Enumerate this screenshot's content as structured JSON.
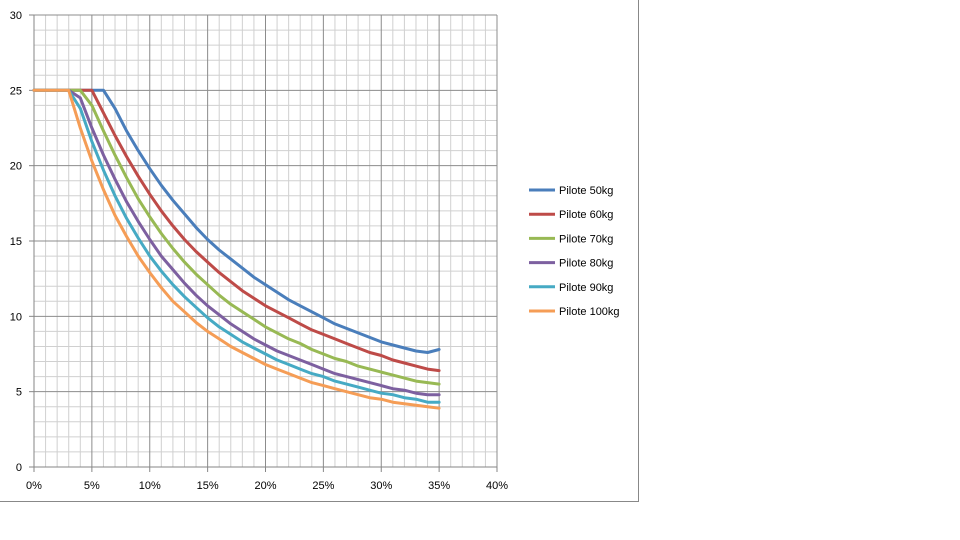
{
  "chart_data": {
    "type": "line",
    "title": "",
    "xlabel": "",
    "ylabel": "",
    "x": [
      0,
      1,
      2,
      3,
      4,
      5,
      6,
      7,
      8,
      9,
      10,
      11,
      12,
      13,
      14,
      15,
      16,
      17,
      18,
      19,
      20,
      21,
      22,
      23,
      24,
      25,
      26,
      27,
      28,
      29,
      30,
      31,
      32,
      33,
      34,
      35
    ],
    "xlim": [
      0,
      40
    ],
    "ylim": [
      0,
      30
    ],
    "x_tick_labels": [
      "0%",
      "5%",
      "10%",
      "15%",
      "20%",
      "25%",
      "30%",
      "35%",
      "40%"
    ],
    "y_tick_labels": [
      "0",
      "5",
      "10",
      "15",
      "20",
      "25",
      "30"
    ],
    "grid": "major and minor",
    "legend_position": "right",
    "series": [
      {
        "name": "Pilote 50kg",
        "color": "#4a7ebb",
        "values": [
          25,
          25,
          25,
          25,
          25,
          25,
          25,
          23.8,
          22.3,
          21.0,
          19.8,
          18.7,
          17.7,
          16.8,
          15.9,
          15.1,
          14.4,
          13.8,
          13.2,
          12.6,
          12.1,
          11.6,
          11.1,
          10.7,
          10.3,
          9.9,
          9.5,
          9.2,
          8.9,
          8.6,
          8.3,
          8.1,
          7.9,
          7.7,
          7.6,
          7.8
        ]
      },
      {
        "name": "Pilote 60kg",
        "color": "#be4b48",
        "values": [
          25,
          25,
          25,
          25,
          25,
          25,
          23.5,
          22.0,
          20.6,
          19.3,
          18.1,
          17.0,
          16.0,
          15.1,
          14.3,
          13.6,
          12.9,
          12.3,
          11.7,
          11.2,
          10.7,
          10.3,
          9.9,
          9.5,
          9.1,
          8.8,
          8.5,
          8.2,
          7.9,
          7.6,
          7.4,
          7.1,
          6.9,
          6.7,
          6.5,
          6.4
        ]
      },
      {
        "name": "Pilote 70kg",
        "color": "#98b954",
        "values": [
          25,
          25,
          25,
          25,
          25,
          24.0,
          22.3,
          20.7,
          19.2,
          17.8,
          16.6,
          15.5,
          14.5,
          13.6,
          12.8,
          12.1,
          11.4,
          10.8,
          10.3,
          9.8,
          9.3,
          8.9,
          8.5,
          8.2,
          7.8,
          7.5,
          7.2,
          7.0,
          6.7,
          6.5,
          6.3,
          6.1,
          5.9,
          5.7,
          5.6,
          5.5
        ]
      },
      {
        "name": "Pilote 80kg",
        "color": "#7d60a0",
        "values": [
          25,
          25,
          25,
          25,
          24.5,
          22.5,
          20.7,
          19.1,
          17.6,
          16.3,
          15.1,
          14.0,
          13.1,
          12.2,
          11.4,
          10.7,
          10.1,
          9.5,
          9.0,
          8.5,
          8.1,
          7.7,
          7.4,
          7.1,
          6.8,
          6.5,
          6.2,
          6.0,
          5.8,
          5.6,
          5.4,
          5.2,
          5.1,
          4.9,
          4.8,
          4.8
        ]
      },
      {
        "name": "Pilote 90kg",
        "color": "#46aac4",
        "values": [
          25,
          25,
          25,
          25,
          23.8,
          21.6,
          19.7,
          18.0,
          16.5,
          15.2,
          14.0,
          13.0,
          12.1,
          11.3,
          10.6,
          9.9,
          9.3,
          8.8,
          8.3,
          7.9,
          7.5,
          7.1,
          6.8,
          6.5,
          6.2,
          6.0,
          5.7,
          5.5,
          5.3,
          5.1,
          4.9,
          4.8,
          4.6,
          4.5,
          4.3,
          4.3
        ]
      },
      {
        "name": "Pilote 100kg",
        "color": "#f59d56",
        "values": [
          25,
          25,
          25,
          25,
          22.5,
          20.3,
          18.4,
          16.7,
          15.3,
          14.0,
          12.9,
          11.9,
          11.0,
          10.3,
          9.6,
          9.0,
          8.5,
          8.0,
          7.6,
          7.2,
          6.8,
          6.5,
          6.2,
          5.9,
          5.6,
          5.4,
          5.2,
          5.0,
          4.8,
          4.6,
          4.5,
          4.3,
          4.2,
          4.1,
          4.0,
          3.9
        ]
      }
    ]
  }
}
